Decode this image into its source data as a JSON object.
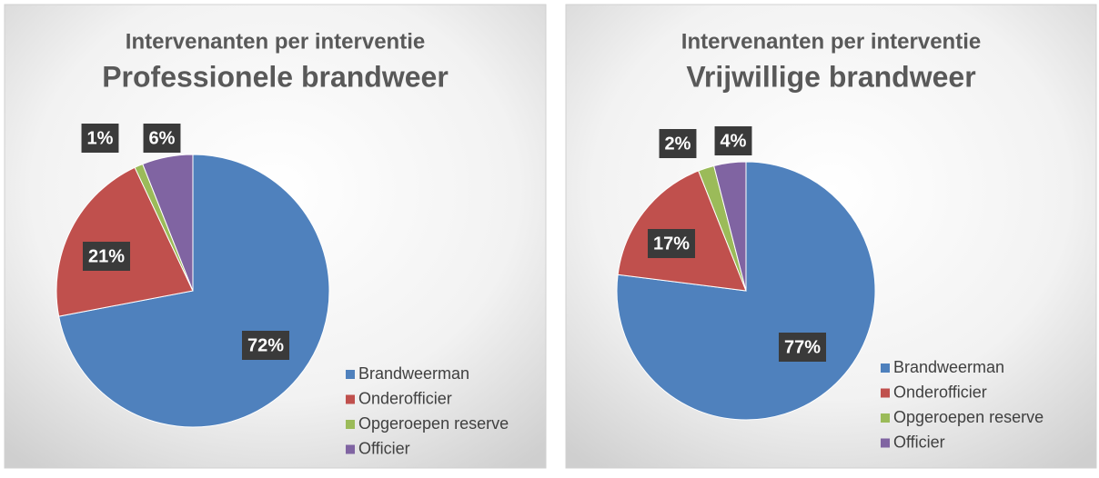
{
  "chart_data": [
    {
      "type": "pie",
      "title": "Intervenanten per interventie",
      "subtitle": "Professionele brandweer",
      "categories": [
        "Brandweerman",
        "Onderofficier",
        "Opgeroepen reserve",
        "Officier"
      ],
      "values": [
        72,
        21,
        1,
        6
      ],
      "value_labels": [
        "72%",
        "21%",
        "1%",
        "6%"
      ],
      "colors": [
        "#4f81bd",
        "#c0504d",
        "#9bbb59",
        "#8064a2"
      ],
      "legend": "lower right"
    },
    {
      "type": "pie",
      "title": "Intervenanten per interventie",
      "subtitle": "Vrijwillige brandweer",
      "categories": [
        "Brandweerman",
        "Onderofficier",
        "Opgeroepen reserve",
        "Officier"
      ],
      "values": [
        77,
        17,
        2,
        4
      ],
      "value_labels": [
        "77%",
        "17%",
        "2%",
        "4%"
      ],
      "colors": [
        "#4f81bd",
        "#c0504d",
        "#9bbb59",
        "#8064a2"
      ],
      "legend": "lower right"
    }
  ]
}
